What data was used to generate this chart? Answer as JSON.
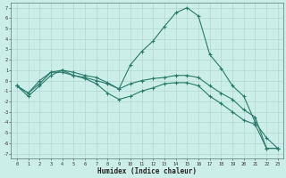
{
  "title": "",
  "xlabel": "Humidex (Indice chaleur)",
  "bg_color": "#cceee8",
  "grid_color": "#b0d8d0",
  "line_color": "#2a7a6a",
  "ylim": [
    -7.5,
    7.5
  ],
  "xlim": [
    -0.5,
    23.5
  ],
  "x_ticks": [
    0,
    1,
    2,
    3,
    4,
    5,
    6,
    7,
    8,
    9,
    10,
    11,
    12,
    13,
    14,
    15,
    16,
    17,
    18,
    19,
    20,
    21,
    22,
    23
  ],
  "y_ticks": [
    -7,
    -6,
    -5,
    -4,
    -3,
    -2,
    -1,
    0,
    1,
    2,
    3,
    4,
    5,
    6,
    7
  ],
  "series": [
    {
      "x": [
        0,
        1,
        2,
        3,
        4,
        5,
        6,
        7,
        8,
        9,
        10,
        11,
        12,
        13,
        14,
        15,
        16,
        17,
        18,
        19,
        20,
        21,
        22,
        23
      ],
      "y": [
        -0.5,
        -1.2,
        -0.3,
        0.8,
        1.0,
        0.8,
        0.5,
        0.3,
        -0.2,
        -0.8,
        1.5,
        2.8,
        3.8,
        5.2,
        6.5,
        7.0,
        6.2,
        2.5,
        1.2,
        -0.5,
        -1.5,
        -4.0,
        -5.5,
        -6.5
      ]
    },
    {
      "x": [
        0,
        1,
        2,
        3,
        4,
        5,
        6,
        7,
        8,
        9,
        10,
        11,
        12,
        13,
        14,
        15,
        16,
        17,
        18,
        19,
        20,
        21,
        22,
        23
      ],
      "y": [
        -0.5,
        -1.2,
        0.0,
        0.8,
        0.8,
        0.5,
        0.3,
        0.0,
        -0.3,
        -0.8,
        -0.3,
        0.0,
        0.2,
        0.3,
        0.5,
        0.5,
        0.3,
        -0.5,
        -1.2,
        -1.8,
        -2.8,
        -3.5,
        -6.5,
        -6.5
      ]
    },
    {
      "x": [
        0,
        1,
        2,
        3,
        4,
        5,
        6,
        7,
        8,
        9,
        10,
        11,
        12,
        13,
        14,
        15,
        16,
        17,
        18,
        19,
        20,
        21,
        22,
        23
      ],
      "y": [
        -0.5,
        -1.5,
        -0.5,
        0.5,
        1.0,
        0.5,
        0.2,
        -0.3,
        -1.2,
        -1.8,
        -1.5,
        -1.0,
        -0.7,
        -0.3,
        -0.2,
        -0.2,
        -0.5,
        -1.5,
        -2.2,
        -3.0,
        -3.8,
        -4.2,
        -6.5,
        -6.5
      ]
    }
  ]
}
